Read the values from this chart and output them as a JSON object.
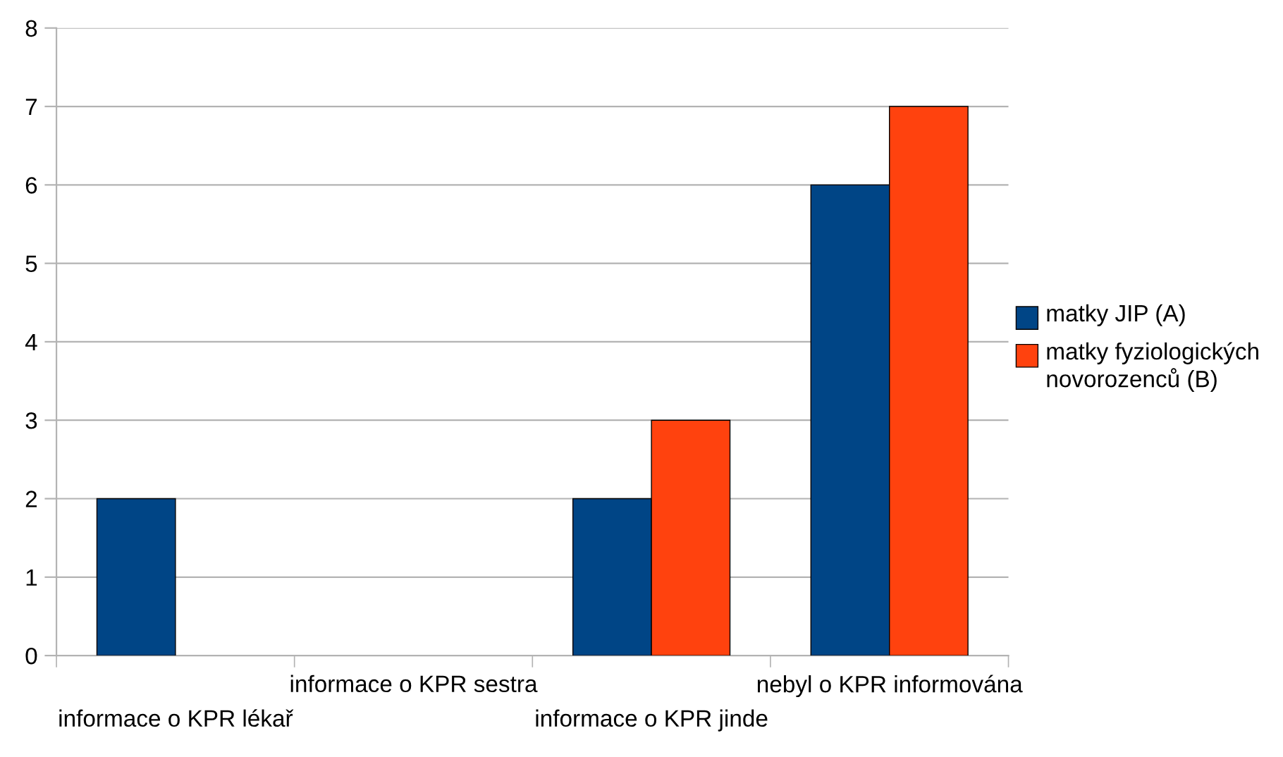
{
  "chart_data": {
    "type": "bar",
    "categories": [
      "informace o KPR lékař",
      "informace o KPR sestra",
      "informace o KPR jinde",
      "nebyl o KPR informována"
    ],
    "series": [
      {
        "name": "matky JIP (A)",
        "color": "#004586",
        "values": [
          2,
          0,
          2,
          6
        ]
      },
      {
        "name": "matky fyziologických novorozenců (B)",
        "color": "#ff420e",
        "values": [
          0,
          0,
          3,
          7
        ]
      }
    ],
    "ylim": [
      0,
      8
    ],
    "yticks": [
      0,
      1,
      2,
      3,
      4,
      5,
      6,
      7,
      8
    ],
    "grid": "y",
    "legend": "right"
  }
}
